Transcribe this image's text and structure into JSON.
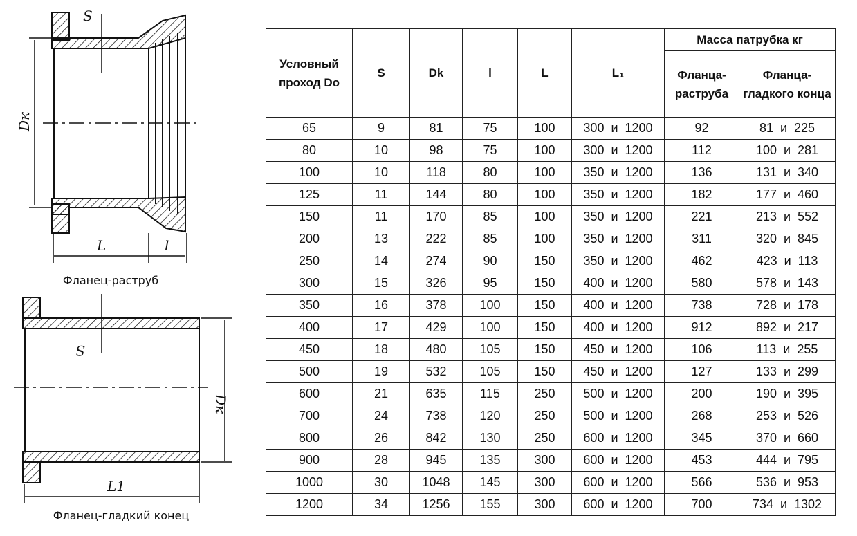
{
  "drawings": {
    "top": {
      "caption": "Фланец-раструб",
      "labels": {
        "dk": "Dк",
        "s": "S",
        "L": "L",
        "l": "l"
      }
    },
    "bottom": {
      "caption": "Фланец-гладкий конец",
      "labels": {
        "dk": "Dк",
        "s": "S",
        "L1": "L1"
      }
    }
  },
  "table": {
    "headers": {
      "do": "Условный проход Do",
      "s": "S",
      "dk": "Dk",
      "l": "l",
      "L": "L",
      "L1": "L₁",
      "mass": "Масса патрубка кг",
      "mass_bell": "Фланца-раструба",
      "mass_plain": "Фланца-гладкого конца"
    },
    "rows": [
      [
        "65",
        "9",
        "81",
        "75",
        "100",
        "300  и  1200",
        "92",
        "81  и  225"
      ],
      [
        "80",
        "10",
        "98",
        "75",
        "100",
        "300  и  1200",
        "112",
        "100  и  281"
      ],
      [
        "100",
        "10",
        "118",
        "80",
        "100",
        "350  и  1200",
        "136",
        "131  и  340"
      ],
      [
        "125",
        "11",
        "144",
        "80",
        "100",
        "350  и  1200",
        "182",
        "177  и  460"
      ],
      [
        "150",
        "11",
        "170",
        "85",
        "100",
        "350  и  1200",
        "221",
        "213  и  552"
      ],
      [
        "200",
        "13",
        "222",
        "85",
        "100",
        "350  и  1200",
        "311",
        "320  и  845"
      ],
      [
        "250",
        "14",
        "274",
        "90",
        "150",
        "350  и  1200",
        "462",
        "423  и  113"
      ],
      [
        "300",
        "15",
        "326",
        "95",
        "150",
        "400  и  1200",
        "580",
        "578  и  143"
      ],
      [
        "350",
        "16",
        "378",
        "100",
        "150",
        "400  и  1200",
        "738",
        "728  и  178"
      ],
      [
        "400",
        "17",
        "429",
        "100",
        "150",
        "400  и  1200",
        "912",
        "892  и  217"
      ],
      [
        "450",
        "18",
        "480",
        "105",
        "150",
        "450  и  1200",
        "106",
        "113  и  255"
      ],
      [
        "500",
        "19",
        "532",
        "105",
        "150",
        "450  и  1200",
        "127",
        "133  и  299"
      ],
      [
        "600",
        "21",
        "635",
        "115",
        "250",
        "500  и  1200",
        "200",
        "190  и  395"
      ],
      [
        "700",
        "24",
        "738",
        "120",
        "250",
        "500  и  1200",
        "268",
        "253  и  526"
      ],
      [
        "800",
        "26",
        "842",
        "130",
        "250",
        "600  и  1200",
        "345",
        "370  и  660"
      ],
      [
        "900",
        "28",
        "945",
        "135",
        "300",
        "600  и  1200",
        "453",
        "444  и  795"
      ],
      [
        "1000",
        "30",
        "1048",
        "145",
        "300",
        "600  и  1200",
        "566",
        "536  и  953"
      ],
      [
        "1200",
        "34",
        "1256",
        "155",
        "300",
        "600  и  1200",
        "700",
        "734  и  1302"
      ]
    ]
  }
}
